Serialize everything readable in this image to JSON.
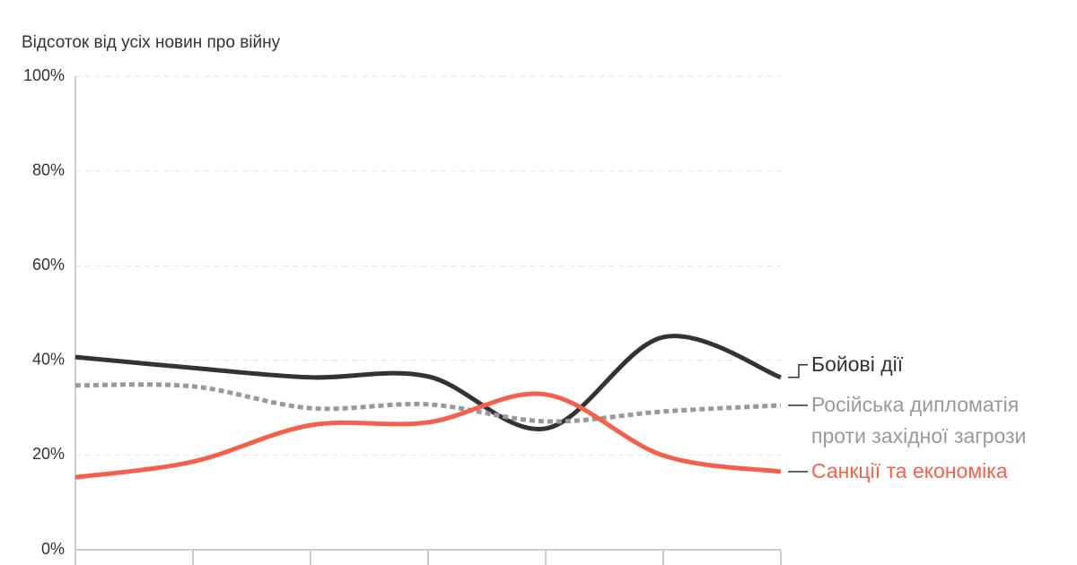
{
  "chart_data": {
    "type": "line",
    "y_label": "Відсоток від усіх новин про війну",
    "categories": [
      null,
      null,
      null,
      null,
      null,
      null,
      null
    ],
    "series": [
      {
        "name": "Бойові дії",
        "color": "#333333",
        "line_style": "solid",
        "values": [
          40.7,
          38.4,
          36.4,
          36.6,
          25.6,
          44.9,
          36.4
        ]
      },
      {
        "name": "Російська дипломатія проти західної загрози",
        "color": "#999999",
        "line_style": "dotted",
        "values": [
          34.7,
          34.5,
          29.9,
          30.7,
          27.1,
          29.2,
          30.5
        ]
      },
      {
        "name": "Санкції та економіка",
        "color": "#f5604c",
        "line_style": "solid",
        "values": [
          15.3,
          18.6,
          26.3,
          26.9,
          32.8,
          19.9,
          16.5
        ]
      }
    ],
    "ylim": [
      0,
      100
    ],
    "yticks": [
      {
        "value": 0,
        "label": "0%"
      },
      {
        "value": 20,
        "label": "20%"
      },
      {
        "value": 40,
        "label": "40%"
      },
      {
        "value": 60,
        "label": "60%"
      },
      {
        "value": 80,
        "label": "80%"
      },
      {
        "value": 100,
        "label": "100%"
      }
    ],
    "grid": true,
    "legend": "right"
  }
}
